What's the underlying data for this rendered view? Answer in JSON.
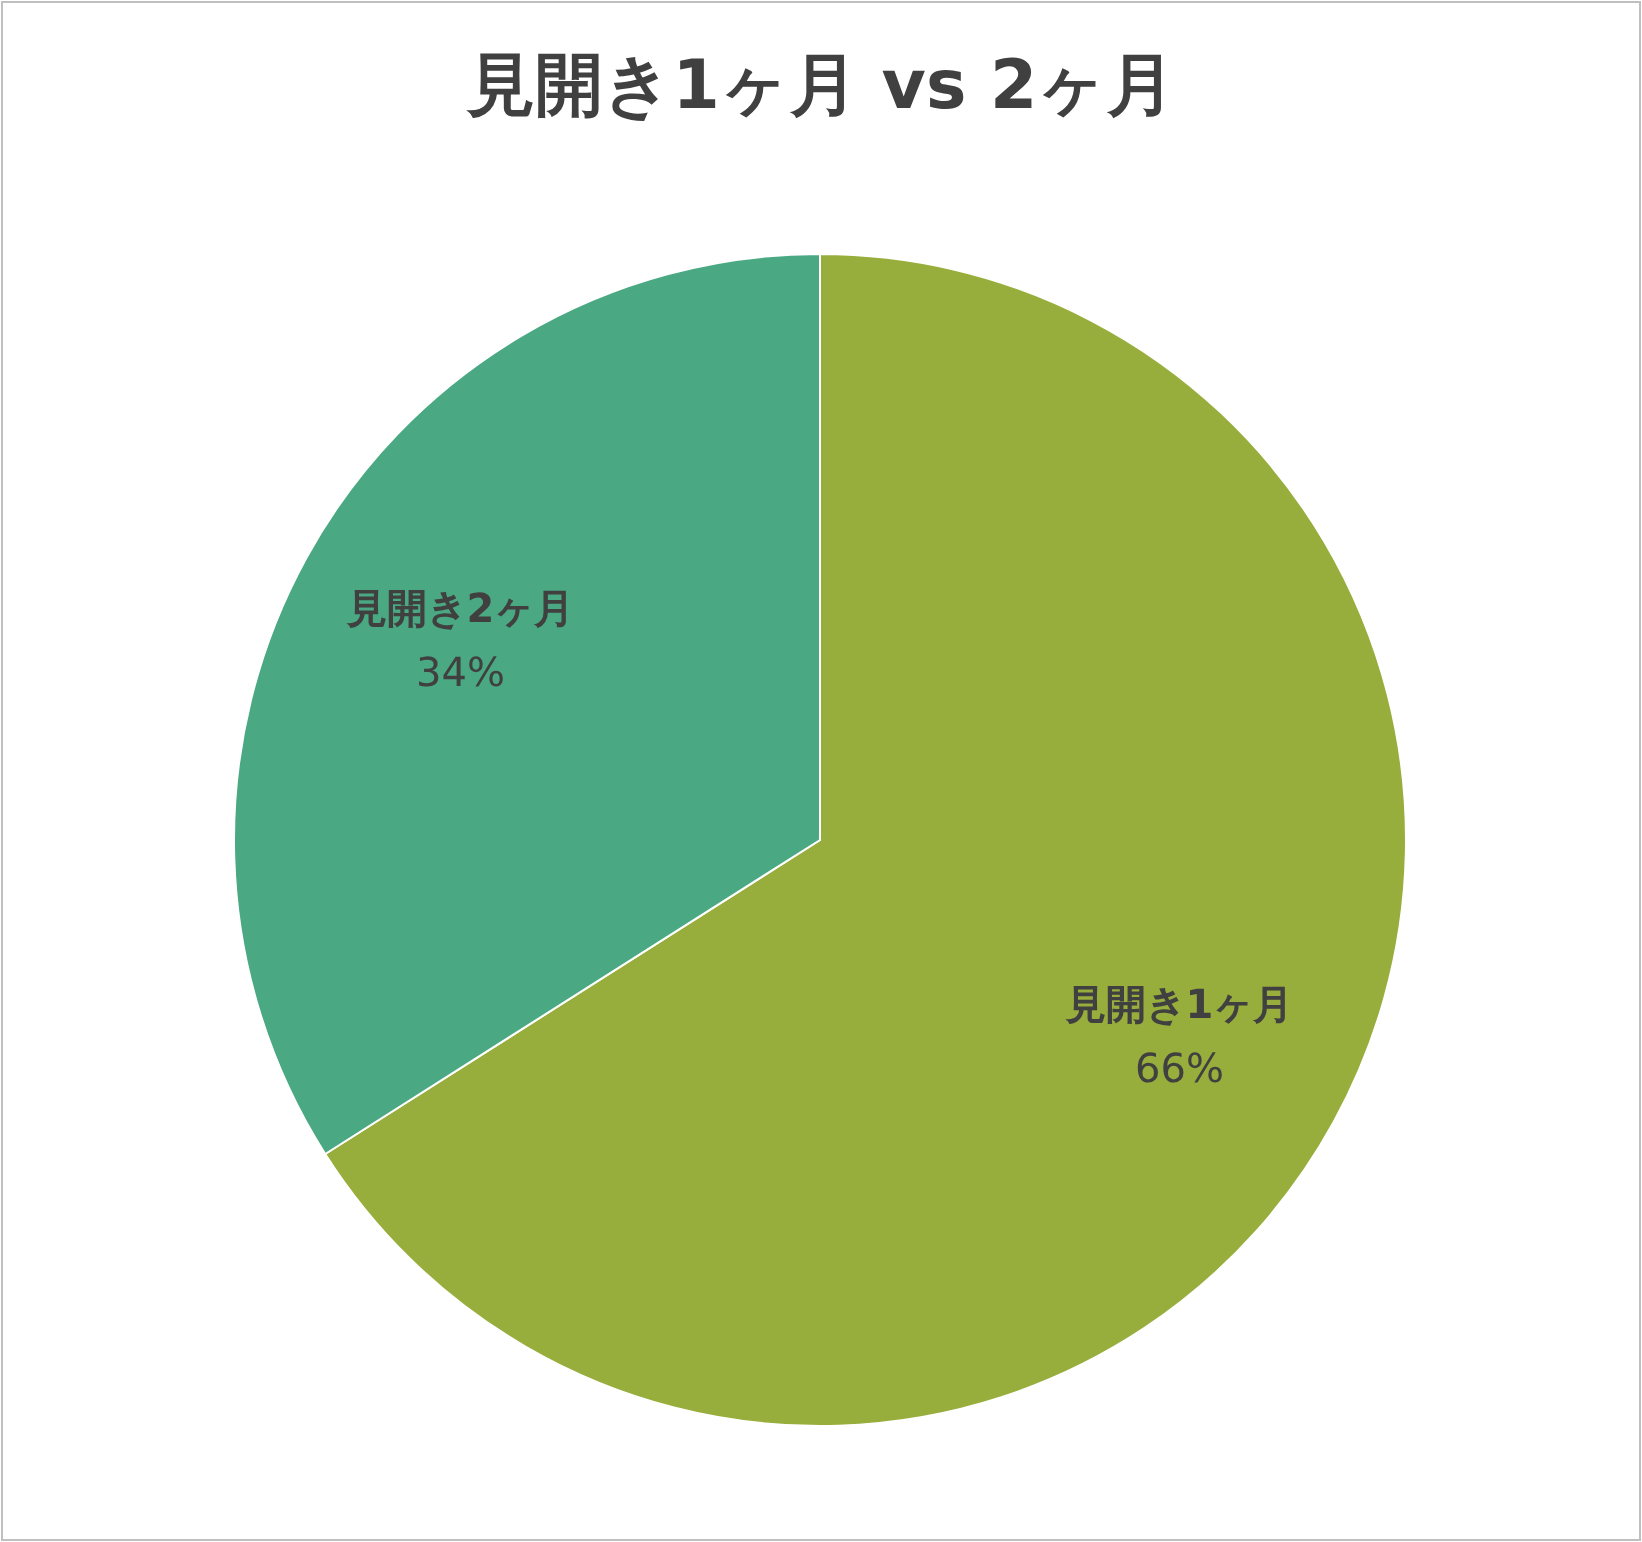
{
  "chart_data": {
    "type": "pie",
    "title": "見開き1ヶ月 vs 2ヶ月",
    "categories": [
      "見開き1ヶ月",
      "見開き2ヶ月"
    ],
    "values": [
      66,
      34
    ],
    "colors": [
      "#97ad3c",
      "#4aa983"
    ],
    "value_labels": [
      "66%",
      "34%"
    ]
  }
}
